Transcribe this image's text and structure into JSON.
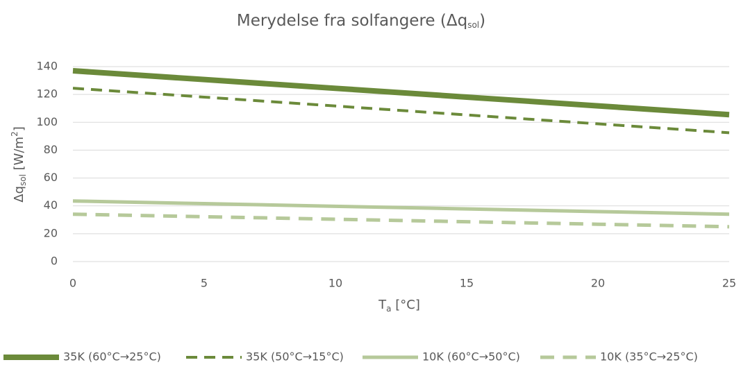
{
  "chart_data": {
    "type": "line",
    "title": [
      "Merydelse fra solfangere (Δq",
      "sol",
      ")"
    ],
    "xlabel": [
      "T",
      "a",
      " [°C]"
    ],
    "ylabel": [
      "Δq",
      "sol",
      " [W/m",
      "2",
      "]"
    ],
    "x": [
      0,
      5,
      10,
      15,
      20,
      25
    ],
    "xlim": [
      0,
      25
    ],
    "xticks": [
      0,
      5,
      10,
      15,
      20,
      25
    ],
    "ylim": [
      0,
      140
    ],
    "yticks": [
      0,
      20,
      40,
      60,
      80,
      100,
      120,
      140
    ],
    "grid": true,
    "legend": "bottom",
    "series": [
      {
        "name": "35K (60°C→25°C)",
        "color": "#6b8a3a",
        "style": "solid",
        "linewidth": 8,
        "values": [
          137,
          130.7,
          124.4,
          118.1,
          111.8,
          105.5
        ]
      },
      {
        "name": "35K (50°C→15°C)",
        "color": "#6b8a3a",
        "style": "dashed",
        "linewidth": 4,
        "values": [
          124.5,
          118.1,
          111.7,
          105.3,
          98.9,
          92.5
        ]
      },
      {
        "name": "10K (60°C→50°C)",
        "color": "#b6c99a",
        "style": "solid",
        "linewidth": 5,
        "values": [
          43.5,
          41.6,
          39.7,
          37.8,
          35.9,
          34
        ]
      },
      {
        "name": "10K (35°C→25°C)",
        "color": "#b6c99a",
        "style": "dashed",
        "linewidth": 5,
        "values": [
          34,
          32.2,
          30.4,
          28.6,
          26.8,
          25
        ]
      }
    ]
  }
}
